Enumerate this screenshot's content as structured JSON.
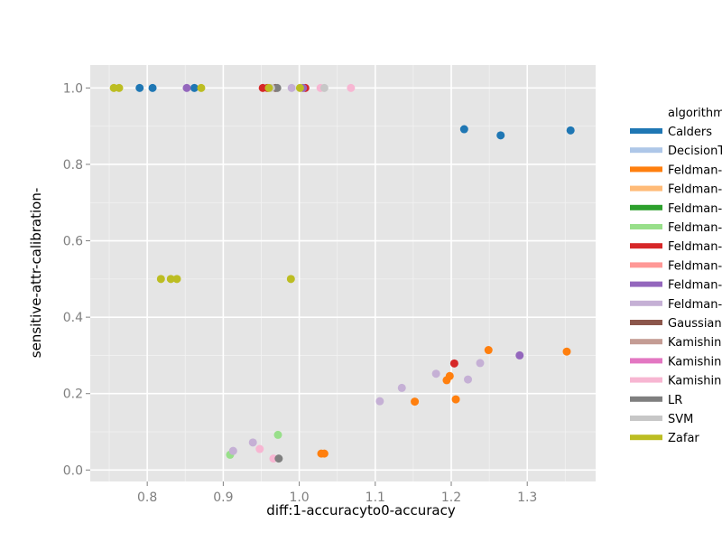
{
  "chart_data": {
    "type": "scatter",
    "title": "",
    "xlabel": "diff:1-accuracyto0-accuracy",
    "ylabel": "sensitive-attr-calibration-",
    "xlim": [
      0.725,
      1.39
    ],
    "ylim": [
      -0.03,
      1.06
    ],
    "xticks": [
      0.8,
      0.9,
      1.0,
      1.1,
      1.2,
      1.3
    ],
    "xtick_labels": [
      "0.8",
      "0.9",
      "1.0",
      "1.1",
      "1.2",
      "1.3"
    ],
    "yticks": [
      0.0,
      0.2,
      0.4,
      0.6,
      0.8,
      1.0
    ],
    "ytick_labels": [
      "0.0",
      "0.2",
      "0.4",
      "0.6",
      "0.8",
      "1.0"
    ],
    "grid": true,
    "legend_title": "algorithm",
    "legend_position": "right",
    "series": [
      {
        "name": "Calders",
        "color": "#1f77b4",
        "points": [
          [
            0.79,
            1.0
          ],
          [
            0.807,
            1.0
          ],
          [
            0.862,
            1.0
          ],
          [
            1.217,
            0.892
          ],
          [
            1.265,
            0.876
          ],
          [
            1.357,
            0.889
          ]
        ]
      },
      {
        "name": "DecisionTree",
        "color": "#aec7e8",
        "points": []
      },
      {
        "name": "Feldman-DecisionTree",
        "color": "#ff7f0e",
        "points": [
          [
            1.152,
            0.179
          ],
          [
            1.194,
            0.235
          ],
          [
            1.198,
            0.246
          ],
          [
            1.206,
            0.185
          ],
          [
            1.249,
            0.314
          ],
          [
            1.352,
            0.31
          ],
          [
            1.029,
            0.043
          ],
          [
            1.033,
            0.043
          ]
        ]
      },
      {
        "name": "Feldman-DecisionTree",
        "color": "#ffbb78",
        "points": []
      },
      {
        "name": "Feldman-GaussianNB",
        "color": "#2ca02c",
        "points": []
      },
      {
        "name": "Feldman-GaussianNB",
        "color": "#98df8a",
        "points": [
          [
            0.909,
            0.04
          ],
          [
            0.972,
            0.092
          ]
        ]
      },
      {
        "name": "Feldman-LR",
        "color": "#d62728",
        "points": [
          [
            0.952,
            1.0
          ],
          [
            0.958,
            1.0
          ],
          [
            1.008,
            1.0
          ],
          [
            1.204,
            0.279
          ]
        ]
      },
      {
        "name": "Feldman-LR",
        "color": "#ff9896",
        "points": []
      },
      {
        "name": "Feldman-SVM",
        "color": "#9467bd",
        "points": [
          [
            0.852,
            1.0
          ],
          [
            1.005,
            1.0
          ],
          [
            1.29,
            0.3
          ]
        ]
      },
      {
        "name": "Feldman-SVM",
        "color": "#c5b0d5",
        "points": [
          [
            0.913,
            0.05
          ],
          [
            0.939,
            0.072
          ],
          [
            0.99,
            1.0
          ],
          [
            1.106,
            0.18
          ],
          [
            1.135,
            0.215
          ],
          [
            1.18,
            0.252
          ],
          [
            1.222,
            0.237
          ],
          [
            1.238,
            0.28
          ]
        ]
      },
      {
        "name": "GaussianNB",
        "color": "#8c564b",
        "points": [
          [
            0.969,
            1.0
          ]
        ]
      },
      {
        "name": "Kamishima",
        "color": "#c49c94",
        "points": []
      },
      {
        "name": "Kamishima",
        "color": "#e377c2",
        "points": []
      },
      {
        "name": "Kamishima",
        "color": "#f7b6d2",
        "points": [
          [
            0.948,
            0.055
          ],
          [
            0.966,
            0.03
          ],
          [
            1.028,
            1.0
          ],
          [
            1.068,
            1.0
          ]
        ]
      },
      {
        "name": "LR",
        "color": "#7f7f7f",
        "points": [
          [
            0.973,
            0.03
          ],
          [
            0.971,
            1.0
          ]
        ]
      },
      {
        "name": "SVM",
        "color": "#c7c7c7",
        "points": [
          [
            0.963,
            1.0
          ],
          [
            1.033,
            1.0
          ]
        ]
      },
      {
        "name": "Zafar",
        "color": "#bcbd22",
        "points": [
          [
            0.756,
            1.0
          ],
          [
            0.763,
            1.0
          ],
          [
            0.871,
            1.0
          ],
          [
            0.96,
            1.0
          ],
          [
            1.001,
            1.0
          ],
          [
            0.818,
            0.5
          ],
          [
            0.831,
            0.5
          ],
          [
            0.839,
            0.5
          ],
          [
            0.989,
            0.5
          ]
        ]
      }
    ]
  },
  "legend": {
    "title": "algorithm",
    "entries": [
      {
        "label": "Calders",
        "color": "#1f77b4"
      },
      {
        "label": "DecisionT",
        "color": "#aec7e8"
      },
      {
        "label": "Feldman-",
        "color": "#ff7f0e"
      },
      {
        "label": "Feldman-",
        "color": "#ffbb78"
      },
      {
        "label": "Feldman-",
        "color": "#2ca02c"
      },
      {
        "label": "Feldman-",
        "color": "#98df8a"
      },
      {
        "label": "Feldman-",
        "color": "#d62728"
      },
      {
        "label": "Feldman-",
        "color": "#ff9896"
      },
      {
        "label": "Feldman-",
        "color": "#9467bd"
      },
      {
        "label": "Feldman-",
        "color": "#c5b0d5"
      },
      {
        "label": "Gaussian",
        "color": "#8c564b"
      },
      {
        "label": "Kamishin",
        "color": "#c49c94"
      },
      {
        "label": "Kamishin",
        "color": "#e377c2"
      },
      {
        "label": "Kamishin",
        "color": "#f7b6d2"
      },
      {
        "label": "LR",
        "color": "#7f7f7f"
      },
      {
        "label": "SVM",
        "color": "#c7c7c7"
      },
      {
        "label": "Zafar",
        "color": "#bcbd22"
      }
    ]
  }
}
